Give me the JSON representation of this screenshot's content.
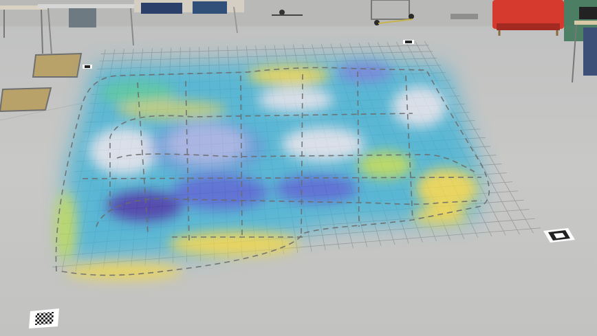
{
  "scene": {
    "description_free": true,
    "heatmap_colormap": [
      "#3b2fa8",
      "#4a5fd8",
      "#3fb4d8",
      "#49c9a0",
      "#b9dd55",
      "#f2d94a"
    ],
    "floor_color": "#c9c9c7",
    "floor_grid_color": "#8a8a8a",
    "chair_color": "#d63a2e",
    "marker_colors": {
      "border": "#ffffff",
      "ink": "#111111"
    }
  }
}
